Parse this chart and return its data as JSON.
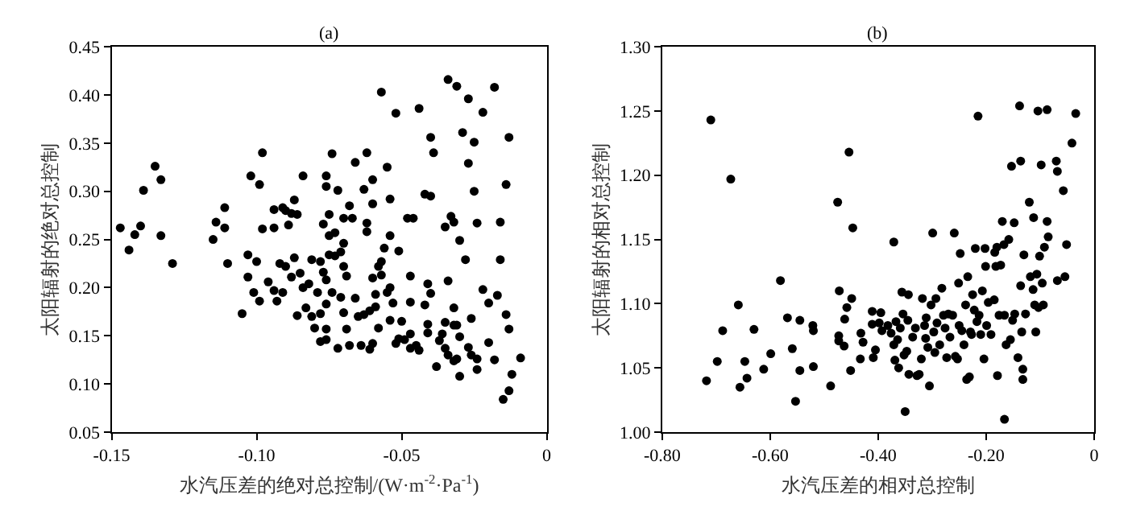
{
  "chart_data": [
    {
      "type": "scatter",
      "title": "(a)",
      "xlabel": "水汽压差的绝对总控制/(W·m$^{-2}$·Pa$^{-1}$)",
      "ylabel": "太阳辐射的绝对总控制",
      "marker": "circle",
      "xlim": [
        -0.15,
        0
      ],
      "ylim": [
        0.05,
        0.45
      ],
      "xticks": [
        {
          "value": -0.15,
          "label": "-0.15"
        },
        {
          "value": -0.1,
          "label": "-0.10"
        },
        {
          "value": -0.05,
          "label": "-0.05"
        },
        0
      ],
      "yticks": [
        0.05,
        {
          "value": 0.1,
          "label": "0.10"
        },
        0.15,
        {
          "value": 0.2,
          "label": "0.20"
        },
        0.25,
        {
          "value": 0.3,
          "label": "0.30"
        },
        0.35,
        {
          "value": 0.4,
          "label": "0.40"
        },
        0.45
      ],
      "series": [
        {
          "color": "#000000",
          "x": [
            -0.147,
            -0.144,
            -0.142,
            -0.14,
            -0.139,
            -0.135,
            -0.133,
            -0.133,
            -0.129,
            -0.115,
            -0.114,
            -0.111,
            -0.111,
            -0.11,
            -0.105,
            -0.103,
            -0.103,
            -0.102,
            -0.1,
            -0.101,
            -0.099,
            -0.099,
            -0.098,
            -0.098,
            -0.096,
            -0.094,
            -0.094,
            -0.093,
            -0.094,
            -0.092,
            -0.091,
            -0.091,
            -0.09,
            -0.09,
            -0.089,
            -0.088,
            -0.088,
            -0.087,
            -0.087,
            -0.086,
            -0.086,
            -0.085,
            -0.084,
            -0.084,
            -0.083,
            -0.082,
            -0.081,
            -0.081,
            -0.08,
            -0.079,
            -0.078,
            -0.078,
            -0.078,
            -0.077,
            -0.077,
            -0.076,
            -0.076,
            -0.076,
            -0.076,
            -0.076,
            -0.076,
            -0.075,
            -0.075,
            -0.075,
            -0.074,
            -0.074,
            -0.073,
            -0.073,
            -0.072,
            -0.072,
            -0.071,
            -0.071,
            -0.07,
            -0.07,
            -0.07,
            -0.07,
            -0.069,
            -0.069,
            -0.068,
            -0.068,
            -0.067,
            -0.066,
            -0.066,
            -0.065,
            -0.064,
            -0.063,
            -0.063,
            -0.062,
            -0.062,
            -0.062,
            -0.061,
            -0.061,
            -0.06,
            -0.06,
            -0.06,
            -0.06,
            -0.059,
            -0.059,
            -0.058,
            -0.058,
            -0.057,
            -0.057,
            -0.057,
            -0.056,
            -0.055,
            -0.055,
            -0.054,
            -0.054,
            -0.054,
            -0.054,
            -0.053,
            -0.052,
            -0.052,
            -0.051,
            -0.051,
            -0.05,
            -0.049,
            -0.048,
            -0.047,
            -0.047,
            -0.047,
            -0.047,
            -0.046,
            -0.045,
            -0.044,
            -0.044,
            -0.042,
            -0.042,
            -0.041,
            -0.041,
            -0.04,
            -0.041,
            -0.04,
            -0.04,
            -0.039,
            -0.038,
            -0.037,
            -0.036,
            -0.035,
            -0.035,
            -0.035,
            -0.034,
            -0.034,
            -0.034,
            -0.033,
            -0.032,
            -0.032,
            -0.032,
            -0.032,
            -0.031,
            -0.031,
            -0.031,
            -0.03,
            -0.03,
            -0.03,
            -0.029,
            -0.028,
            -0.027,
            -0.027,
            -0.027,
            -0.026,
            -0.026,
            -0.025,
            -0.025,
            -0.024,
            -0.024,
            -0.024,
            -0.022,
            -0.022,
            -0.02,
            -0.02,
            -0.018,
            -0.018,
            -0.017,
            -0.016,
            -0.016,
            -0.015,
            -0.014,
            -0.014,
            -0.013,
            -0.013,
            -0.013,
            -0.012,
            -0.009
          ],
          "values": [
            0.262,
            0.239,
            0.255,
            0.264,
            0.301,
            0.326,
            0.312,
            0.254,
            0.225,
            0.25,
            0.268,
            0.262,
            0.283,
            0.225,
            0.173,
            0.211,
            0.234,
            0.316,
            0.227,
            0.195,
            0.307,
            0.186,
            0.261,
            0.34,
            0.206,
            0.281,
            0.262,
            0.186,
            0.197,
            0.225,
            0.195,
            0.283,
            0.28,
            0.222,
            0.265,
            0.211,
            0.277,
            0.291,
            0.231,
            0.276,
            0.171,
            0.215,
            0.316,
            0.2,
            0.179,
            0.204,
            0.229,
            0.17,
            0.158,
            0.195,
            0.227,
            0.144,
            0.173,
            0.266,
            0.216,
            0.305,
            0.208,
            0.183,
            0.316,
            0.157,
            0.146,
            0.276,
            0.254,
            0.234,
            0.339,
            0.195,
            0.257,
            0.233,
            0.301,
            0.137,
            0.237,
            0.19,
            0.174,
            0.246,
            0.222,
            0.272,
            0.212,
            0.157,
            0.285,
            0.14,
            0.272,
            0.33,
            0.189,
            0.17,
            0.14,
            0.172,
            0.302,
            0.34,
            0.267,
            0.258,
            0.176,
            0.136,
            0.312,
            0.21,
            0.142,
            0.287,
            0.18,
            0.193,
            0.158,
            0.222,
            0.403,
            0.227,
            0.213,
            0.241,
            0.325,
            0.195,
            0.254,
            0.292,
            0.166,
            0.2,
            0.184,
            0.381,
            0.142,
            0.147,
            0.238,
            0.165,
            0.146,
            0.272,
            0.137,
            0.212,
            0.152,
            0.185,
            0.272,
            0.14,
            0.386,
            0.135,
            0.297,
            0.182,
            0.153,
            0.162,
            0.295,
            0.204,
            0.194,
            0.356,
            0.34,
            0.118,
            0.145,
            0.152,
            0.263,
            0.164,
            0.137,
            0.207,
            0.13,
            0.416,
            0.274,
            0.179,
            0.161,
            0.124,
            0.268,
            0.161,
            0.126,
            0.409,
            0.108,
            0.249,
            0.149,
            0.361,
            0.229,
            0.396,
            0.138,
            0.329,
            0.168,
            0.13,
            0.351,
            0.3,
            0.126,
            0.267,
            0.115,
            0.382,
            0.198,
            0.184,
            0.143,
            0.125,
            0.408,
            0.192,
            0.268,
            0.229,
            0.084,
            0.172,
            0.307,
            0.356,
            0.157,
            0.093,
            0.11,
            0.127
          ]
        }
      ]
    },
    {
      "type": "scatter",
      "title": "(b)",
      "xlabel": "水汽压差的相对总控制",
      "ylabel": "太阳辐射的相对总控制",
      "marker": "circle",
      "xlim": [
        -0.8,
        0
      ],
      "ylim": [
        1.0,
        1.3
      ],
      "xticks": [
        {
          "value": -0.8,
          "label": "-0.80"
        },
        {
          "value": -0.6,
          "label": "-0.60"
        },
        {
          "value": -0.4,
          "label": "-0.40"
        },
        {
          "value": -0.2,
          "label": "-0.20"
        },
        0
      ],
      "yticks": [
        {
          "value": 1.0,
          "label": "1.00"
        },
        1.05,
        {
          "value": 1.1,
          "label": "1.10"
        },
        1.15,
        {
          "value": 1.2,
          "label": "1.20"
        },
        1.25,
        {
          "value": 1.3,
          "label": "1.30"
        }
      ],
      "series": [
        {
          "color": "#000000",
          "x": [
            -0.718,
            -0.71,
            -0.698,
            -0.688,
            -0.673,
            -0.659,
            -0.656,
            -0.647,
            -0.643,
            -0.63,
            -0.599,
            -0.612,
            -0.581,
            -0.568,
            -0.559,
            -0.553,
            -0.545,
            -0.545,
            -0.521,
            -0.52,
            -0.52,
            -0.488,
            -0.475,
            -0.472,
            -0.473,
            -0.473,
            -0.463,
            -0.462,
            -0.458,
            -0.454,
            -0.451,
            -0.447,
            -0.449,
            -0.433,
            -0.432,
            -0.428,
            -0.411,
            -0.411,
            -0.409,
            -0.405,
            -0.398,
            -0.395,
            -0.393,
            -0.382,
            -0.376,
            -0.371,
            -0.371,
            -0.369,
            -0.367,
            -0.364,
            -0.362,
            -0.359,
            -0.356,
            -0.354,
            -0.352,
            -0.35,
            -0.347,
            -0.345,
            -0.344,
            -0.343,
            -0.336,
            -0.331,
            -0.328,
            -0.324,
            -0.32,
            -0.318,
            -0.314,
            -0.312,
            -0.311,
            -0.308,
            -0.305,
            -0.302,
            -0.299,
            -0.297,
            -0.295,
            -0.293,
            -0.291,
            -0.286,
            -0.282,
            -0.279,
            -0.276,
            -0.273,
            -0.27,
            -0.267,
            -0.262,
            -0.259,
            -0.257,
            -0.253,
            -0.251,
            -0.25,
            -0.248,
            -0.245,
            -0.241,
            -0.238,
            -0.236,
            -0.234,
            -0.231,
            -0.229,
            -0.227,
            -0.225,
            -0.222,
            -0.22,
            -0.217,
            -0.215,
            -0.213,
            -0.21,
            -0.207,
            -0.204,
            -0.202,
            -0.201,
            -0.199,
            -0.196,
            -0.191,
            -0.185,
            -0.184,
            -0.182,
            -0.18,
            -0.179,
            -0.176,
            -0.173,
            -0.17,
            -0.167,
            -0.166,
            -0.166,
            -0.163,
            -0.158,
            -0.155,
            -0.153,
            -0.151,
            -0.148,
            -0.147,
            -0.141,
            -0.138,
            -0.136,
            -0.136,
            -0.134,
            -0.132,
            -0.132,
            -0.13,
            -0.127,
            -0.12,
            -0.118,
            -0.113,
            -0.112,
            -0.11,
            -0.108,
            -0.106,
            -0.104,
            -0.103,
            -0.101,
            -0.098,
            -0.096,
            -0.094,
            -0.092,
            -0.087,
            -0.087,
            -0.085,
            -0.07,
            -0.068,
            -0.068,
            -0.057,
            -0.054,
            -0.051,
            -0.041,
            -0.034
          ],
          "values": [
            1.04,
            1.243,
            1.055,
            1.079,
            1.197,
            1.099,
            1.035,
            1.055,
            1.042,
            1.08,
            1.061,
            1.049,
            1.118,
            1.089,
            1.065,
            1.024,
            1.087,
            1.048,
            1.083,
            1.079,
            1.051,
            1.036,
            1.179,
            1.11,
            1.075,
            1.071,
            1.067,
            1.088,
            1.097,
            1.218,
            1.048,
            1.159,
            1.104,
            1.057,
            1.077,
            1.07,
            1.094,
            1.084,
            1.058,
            1.064,
            1.085,
            1.093,
            1.079,
            1.083,
            1.077,
            1.148,
            1.068,
            1.056,
            1.086,
            1.072,
            1.05,
            1.081,
            1.109,
            1.092,
            1.06,
            1.016,
            1.063,
            1.087,
            1.107,
            1.045,
            1.074,
            1.081,
            1.044,
            1.045,
            1.057,
            1.104,
            1.083,
            1.073,
            1.089,
            1.066,
            1.036,
            1.099,
            1.155,
            1.078,
            1.062,
            1.104,
            1.085,
            1.068,
            1.112,
            1.091,
            1.081,
            1.058,
            1.092,
            1.074,
            1.091,
            1.155,
            1.059,
            1.057,
            1.116,
            1.083,
            1.139,
            1.079,
            1.068,
            1.099,
            1.041,
            1.121,
            1.043,
            1.078,
            1.076,
            1.107,
            1.095,
            1.143,
            1.086,
            1.246,
            1.091,
            1.076,
            1.11,
            1.057,
            1.143,
            1.129,
            1.083,
            1.101,
            1.076,
            1.103,
            1.14,
            1.129,
            1.144,
            1.044,
            1.091,
            1.13,
            1.164,
            1.146,
            1.01,
            1.091,
            1.068,
            1.15,
            1.072,
            1.207,
            1.087,
            1.163,
            1.092,
            1.058,
            1.254,
            1.211,
            1.114,
            1.078,
            1.049,
            1.041,
            1.138,
            1.092,
            1.179,
            1.121,
            1.111,
            1.167,
            1.099,
            1.078,
            1.123,
            1.25,
            1.097,
            1.137,
            1.208,
            1.116,
            1.099,
            1.144,
            1.251,
            1.164,
            1.152,
            1.211,
            1.203,
            1.118,
            1.188,
            1.121,
            1.146,
            1.225,
            1.248
          ]
        }
      ]
    }
  ]
}
